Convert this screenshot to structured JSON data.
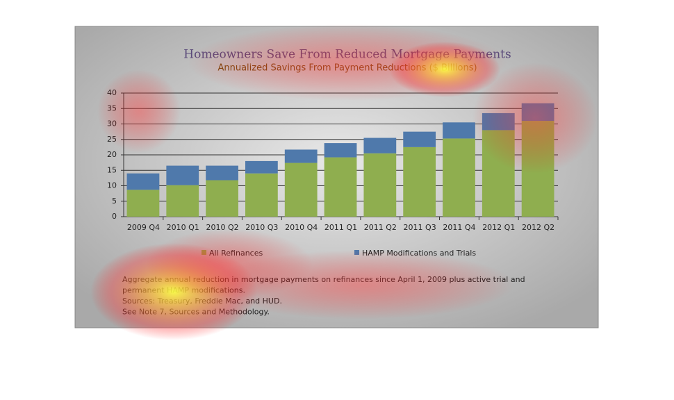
{
  "chart_data": {
    "type": "stacked_bar",
    "title": "Homeowners Save From Reduced Mortgage Payments",
    "subtitle": "Annualized Savings From Payment Reductions ($ Billions)",
    "categories": [
      "2009 Q4",
      "2010 Q1",
      "2010 Q2",
      "2010 Q3",
      "2010 Q4",
      "2011 Q1",
      "2011 Q2",
      "2011 Q3",
      "2011 Q4",
      "2012 Q1",
      "2012 Q2"
    ],
    "series": [
      {
        "name": "All Refinances",
        "color": "#8fae4f",
        "values": [
          8.7,
          10.2,
          11.8,
          14,
          17.4,
          19.2,
          20.5,
          22.5,
          25.3,
          28,
          31
        ]
      },
      {
        "name": "HAMP Modifications and Trials",
        "color": "#4f79ab",
        "values": [
          5.3,
          6.3,
          4.7,
          4,
          4.3,
          4.6,
          5,
          5,
          5.2,
          5.5,
          5.7
        ]
      }
    ],
    "ylim": [
      0,
      40
    ],
    "yticks": [
      0,
      5,
      10,
      15,
      20,
      25,
      30,
      35,
      40
    ],
    "grid": true,
    "notes": [
      "Aggregate annual reduction in mortgage payments on refinances since April 1, 2009 plus active trial and",
      "permanent HAMP modifications.",
      "Sources: Treasury, Freddie Mac, and HUD.",
      "See Note 7, Sources and Methodology."
    ]
  }
}
